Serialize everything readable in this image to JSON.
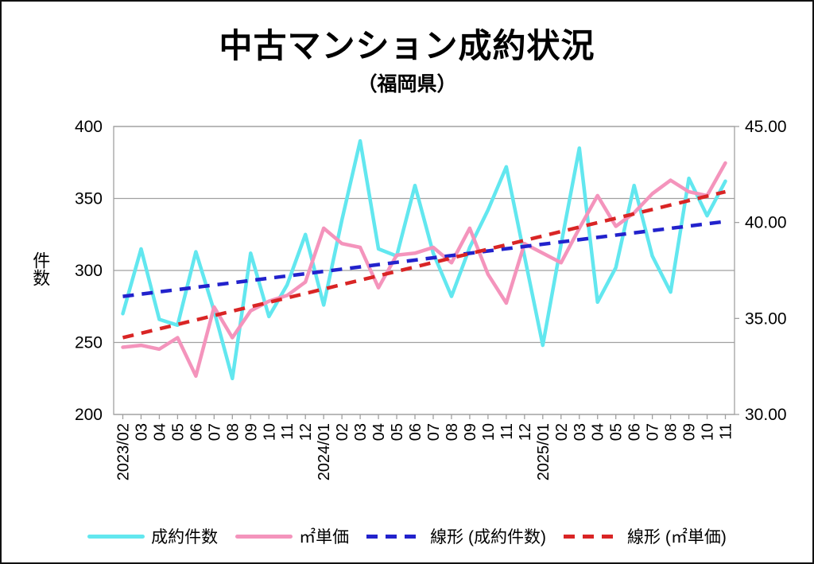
{
  "title": "中古マンション成約状況",
  "subtitle": "（福岡県）",
  "y_left_axis_label": "件数",
  "legend": {
    "items": [
      {
        "label": "成約件数",
        "color": "#62E7EF",
        "style": "solid"
      },
      {
        "label": "㎡単価",
        "color": "#F494BC",
        "style": "solid"
      },
      {
        "label": "線形 (成約件数)",
        "color": "#2222CC",
        "style": "dashed"
      },
      {
        "label": "線形 (㎡単価)",
        "color": "#D92525",
        "style": "dashed"
      }
    ]
  },
  "chart_data": {
    "type": "line",
    "title": "中古マンション成約状況",
    "subtitle": "（福岡県）",
    "xlabel": "",
    "ylabel_left": "件数",
    "ylabel_right": "",
    "grid": true,
    "legend_position": "bottom",
    "categories": [
      "2023/02",
      "03",
      "04",
      "05",
      "06",
      "07",
      "08",
      "09",
      "10",
      "11",
      "12",
      "2024/01",
      "02",
      "03",
      "04",
      "05",
      "06",
      "07",
      "08",
      "09",
      "10",
      "11",
      "12",
      "2025/01",
      "02",
      "03",
      "04",
      "05",
      "06",
      "07",
      "08",
      "09",
      "10",
      "11"
    ],
    "left_axis": {
      "min": 200,
      "max": 400,
      "ticks": [
        {
          "label": "400",
          "value": 400
        },
        {
          "label": "350",
          "value": 350
        },
        {
          "label": "300",
          "value": 300
        },
        {
          "label": "250",
          "value": 250
        },
        {
          "label": "200",
          "value": 200
        }
      ]
    },
    "right_axis": {
      "min": 30,
      "max": 45,
      "ticks": [
        {
          "label": "45.00",
          "value": 45
        },
        {
          "label": "40.00",
          "value": 40
        },
        {
          "label": "35.00",
          "value": 35
        },
        {
          "label": "30.00",
          "value": 30
        }
      ]
    },
    "series": [
      {
        "name": "成約件数",
        "axis": "left",
        "color": "#62E7EF",
        "style": "solid",
        "values": [
          270,
          315,
          266,
          262,
          313,
          272,
          225,
          312,
          268,
          290,
          325,
          276,
          335,
          390,
          315,
          310,
          359,
          312,
          282,
          316,
          342,
          372,
          310,
          248,
          318,
          385,
          278,
          302,
          359,
          310,
          285,
          364,
          338,
          362
        ]
      },
      {
        "name": "㎡単価",
        "axis": "right",
        "color": "#F494BC",
        "style": "solid",
        "values": [
          33.5,
          33.6,
          33.4,
          34.0,
          32.0,
          35.6,
          34.0,
          35.4,
          35.9,
          36.2,
          36.9,
          39.7,
          38.9,
          38.7,
          36.6,
          38.3,
          38.4,
          38.7,
          37.9,
          39.7,
          37.3,
          35.8,
          38.9,
          38.4,
          37.9,
          39.7,
          41.4,
          39.8,
          40.5,
          41.5,
          42.2,
          41.6,
          41.4,
          43.1
        ]
      },
      {
        "name": "線形 (成約件数)",
        "axis": "left",
        "color": "#2222CC",
        "style": "dashed",
        "trend_endpoints": [
          282,
          334
        ]
      },
      {
        "name": "線形 (㎡単価)",
        "axis": "right",
        "color": "#D92525",
        "style": "dashed",
        "trend_endpoints": [
          34.0,
          41.6
        ]
      }
    ],
    "grid_color": "#A0A0A0"
  }
}
